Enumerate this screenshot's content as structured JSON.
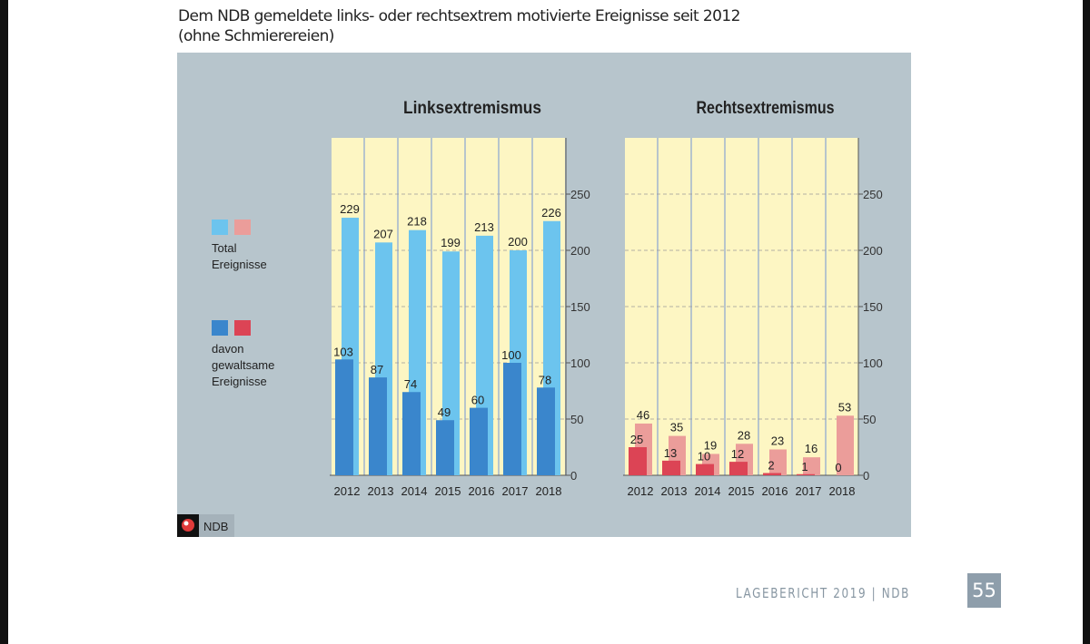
{
  "title_line1": "Dem NDB gemeldete links- oder rechtsextrem motivierte Ereignisse seit 2012",
  "title_line2": "(ohne Schmierereien)",
  "legend": {
    "total_label_1": "Total",
    "total_label_2": "Ereignisse",
    "violent_label_1": "davon",
    "violent_label_2": "gewaltsame",
    "violent_label_3": "Ereignisse"
  },
  "logo_text": "NDB",
  "footer_text": "LAGEBERICHT 2019 | NDB",
  "page_number": "55",
  "colors": {
    "panel": "#b7c5cc",
    "plot": "#fdf6c3",
    "left_total": "#6cc4ee",
    "left_violent": "#3a86cc",
    "right_total": "#eb9d9a",
    "right_violent": "#dc4455"
  },
  "chart_data": [
    {
      "type": "bar",
      "title": "Linksextremismus",
      "categories": [
        "2012",
        "2013",
        "2014",
        "2015",
        "2016",
        "2017",
        "2018"
      ],
      "series": [
        {
          "name": "Total Ereignisse",
          "values": [
            229,
            207,
            218,
            199,
            213,
            200,
            226
          ]
        },
        {
          "name": "davon gewaltsame Ereignisse",
          "values": [
            103,
            87,
            74,
            49,
            60,
            100,
            78
          ]
        }
      ],
      "yticks": [
        0,
        50,
        100,
        150,
        200,
        250
      ],
      "ylim": [
        0,
        300
      ],
      "grid": true
    },
    {
      "type": "bar",
      "title": "Rechtsextremismus",
      "categories": [
        "2012",
        "2013",
        "2014",
        "2015",
        "2016",
        "2017",
        "2018"
      ],
      "series": [
        {
          "name": "Total Ereignisse",
          "values": [
            46,
            35,
            19,
            28,
            23,
            16,
            53
          ]
        },
        {
          "name": "davon gewaltsame Ereignisse",
          "values": [
            25,
            13,
            10,
            12,
            2,
            1,
            0
          ]
        }
      ],
      "yticks": [
        0,
        50,
        100,
        150,
        200,
        250
      ],
      "ylim": [
        0,
        300
      ],
      "grid": true
    }
  ]
}
